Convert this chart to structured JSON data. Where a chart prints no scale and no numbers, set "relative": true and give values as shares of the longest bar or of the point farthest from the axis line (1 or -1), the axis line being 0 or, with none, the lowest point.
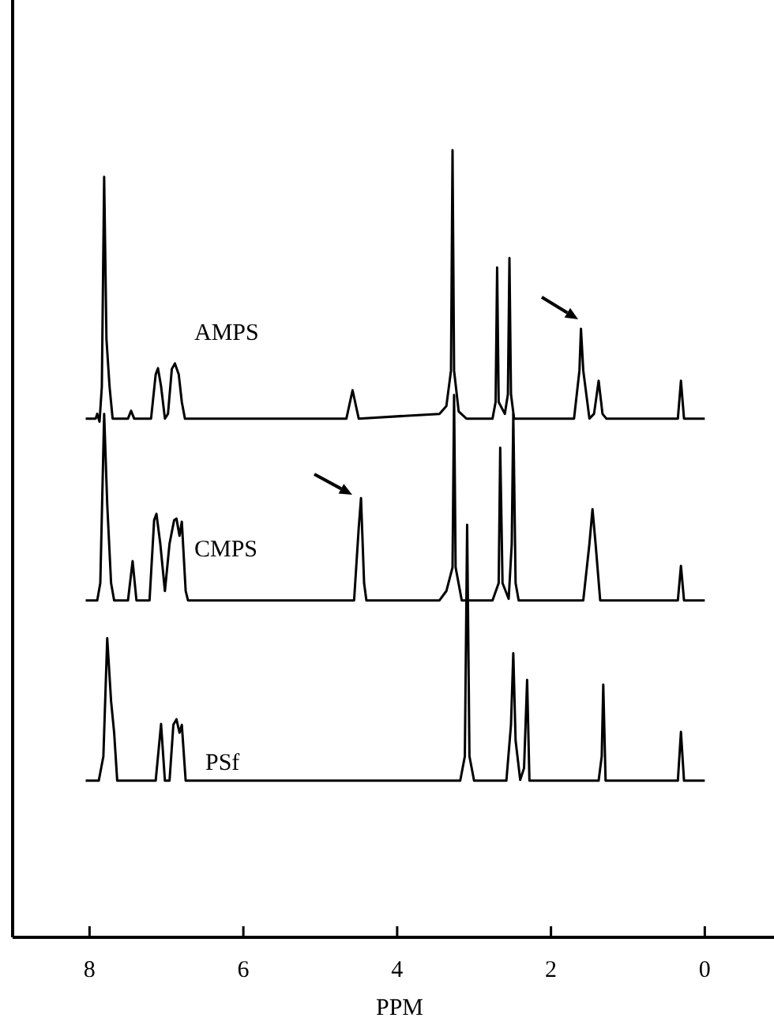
{
  "chart_data": {
    "type": "line",
    "xlabel": "PPM",
    "relative": true,
    "tick_labels": "x",
    "xlim": [
      9,
      -0.9
    ],
    "xticks": [
      8,
      6,
      4,
      2,
      0
    ],
    "series": [
      {
        "name": "AMPS",
        "color": "#000000",
        "x": [
          8.05,
          7.92,
          7.9,
          7.87,
          7.84,
          7.81,
          7.78,
          7.74,
          7.7,
          7.5,
          7.46,
          7.42,
          7.2,
          7.14,
          7.11,
          7.07,
          7.02,
          6.98,
          6.93,
          6.89,
          6.84,
          6.8,
          6.76,
          4.66,
          4.58,
          4.5,
          3.45,
          3.36,
          3.3,
          3.28,
          3.26,
          3.2,
          3.1,
          2.76,
          2.72,
          2.7,
          2.68,
          2.6,
          2.56,
          2.54,
          2.52,
          2.48,
          1.7,
          1.63,
          1.61,
          1.58,
          1.5,
          1.44,
          1.38,
          1.33,
          1.28,
          0.35,
          0.31,
          0.27,
          0
        ],
        "values": [
          0.659,
          0.659,
          0.665,
          0.655,
          0.7,
          0.966,
          0.76,
          0.7,
          0.659,
          0.659,
          0.669,
          0.659,
          0.659,
          0.715,
          0.723,
          0.7,
          0.659,
          0.665,
          0.722,
          0.729,
          0.715,
          0.68,
          0.659,
          0.659,
          0.695,
          0.659,
          0.665,
          0.675,
          0.72,
          1,
          0.72,
          0.668,
          0.659,
          0.659,
          0.68,
          0.851,
          0.68,
          0.665,
          0.69,
          0.863,
          0.69,
          0.659,
          0.659,
          0.72,
          0.773,
          0.72,
          0.659,
          0.665,
          0.707,
          0.665,
          0.659,
          0.659,
          0.707,
          0.659,
          0.659
        ]
      },
      {
        "name": "CMPS",
        "color": "#000000",
        "x": [
          8.05,
          7.9,
          7.86,
          7.81,
          7.77,
          7.72,
          7.68,
          7.5,
          7.44,
          7.39,
          7.22,
          7.16,
          7.13,
          7.08,
          7.02,
          6.96,
          6.9,
          6.87,
          6.83,
          6.8,
          6.75,
          6.72,
          4.56,
          4.5,
          4.47,
          4.43,
          4.4,
          3.45,
          3.36,
          3.28,
          3.26,
          3.24,
          3.16,
          2.76,
          2.68,
          2.66,
          2.63,
          2.55,
          2.51,
          2.49,
          2.46,
          2.42,
          1.58,
          1.5,
          1.46,
          1.42,
          1.36,
          0.35,
          0.31,
          0.27,
          0
        ],
        "values": [
          0.428,
          0.428,
          0.45,
          0.665,
          0.55,
          0.45,
          0.428,
          0.428,
          0.478,
          0.428,
          0.428,
          0.53,
          0.538,
          0.5,
          0.44,
          0.5,
          0.53,
          0.532,
          0.51,
          0.528,
          0.44,
          0.428,
          0.428,
          0.52,
          0.558,
          0.45,
          0.428,
          0.428,
          0.44,
          0.47,
          0.689,
          0.47,
          0.428,
          0.428,
          0.45,
          0.622,
          0.45,
          0.43,
          0.5,
          0.665,
          0.45,
          0.428,
          0.428,
          0.5,
          0.544,
          0.5,
          0.428,
          0.428,
          0.472,
          0.428,
          0.428
        ]
      },
      {
        "name": "PSf",
        "color": "#000000",
        "x": [
          8.05,
          7.88,
          7.82,
          7.77,
          7.72,
          7.68,
          7.64,
          7.14,
          7.07,
          7.02,
          6.96,
          6.91,
          6.87,
          6.83,
          6.8,
          6.75,
          3.18,
          3.12,
          3.09,
          3.06,
          3,
          2.58,
          2.52,
          2.49,
          2.46,
          2.4,
          2.35,
          2.31,
          2.28,
          1.38,
          1.34,
          1.32,
          1.29,
          0.35,
          0.31,
          0.27,
          0
        ],
        "values": [
          0.199,
          0.199,
          0.23,
          0.38,
          0.3,
          0.26,
          0.199,
          0.199,
          0.271,
          0.199,
          0.199,
          0.27,
          0.277,
          0.26,
          0.27,
          0.199,
          0.199,
          0.23,
          0.524,
          0.23,
          0.199,
          0.199,
          0.27,
          0.361,
          0.25,
          0.2,
          0.215,
          0.327,
          0.199,
          0.199,
          0.23,
          0.321,
          0.199,
          0.199,
          0.261,
          0.199,
          0.199
        ]
      }
    ]
  }
}
